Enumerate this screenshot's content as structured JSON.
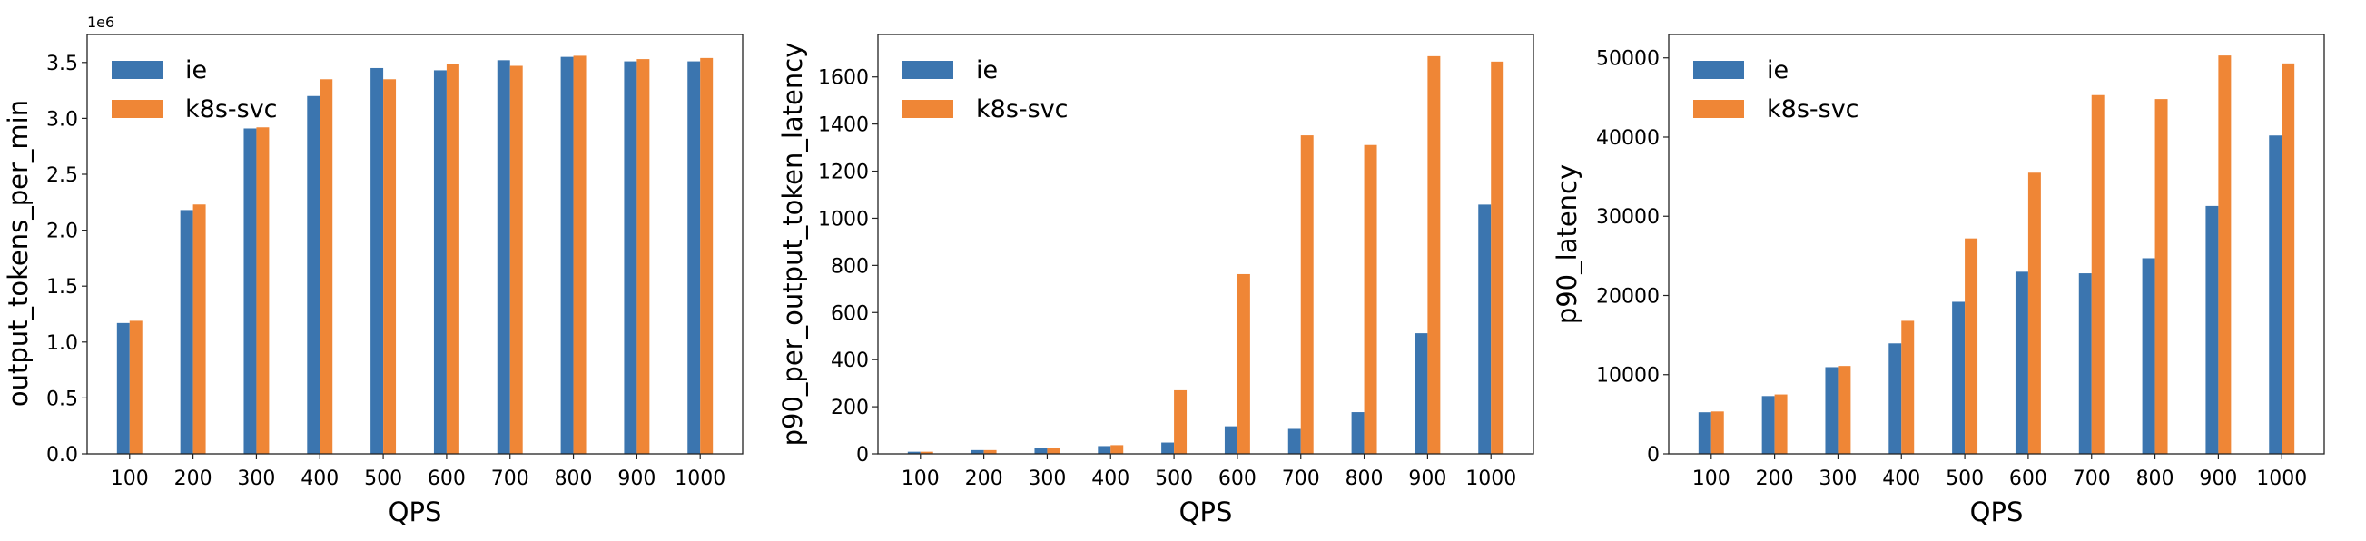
{
  "chart_data": [
    {
      "type": "bar",
      "xlabel": "QPS",
      "ylabel": "output_tokens_per_min",
      "offset_text": "1e6",
      "categories": [
        "100",
        "200",
        "300",
        "400",
        "500",
        "600",
        "700",
        "800",
        "900",
        "1000"
      ],
      "ylim": [
        0,
        3.75
      ],
      "yticks": [
        0.0,
        0.5,
        1.0,
        1.5,
        2.0,
        2.5,
        3.0,
        3.5
      ],
      "ytick_labels": [
        "0.0",
        "0.5",
        "1.0",
        "1.5",
        "2.0",
        "2.5",
        "3.0",
        "3.5"
      ],
      "scale": 1000000,
      "legend": "top-left",
      "grid": false,
      "series": [
        {
          "name": "ie",
          "color": "#3b75af",
          "values": [
            1170000,
            2180000,
            2910000,
            3200000,
            3450000,
            3430000,
            3520000,
            3550000,
            3510000,
            3510000
          ]
        },
        {
          "name": "k8s-svc",
          "color": "#ef8636",
          "values": [
            1190000,
            2230000,
            2920000,
            3350000,
            3350000,
            3490000,
            3470000,
            3560000,
            3530000,
            3540000
          ]
        }
      ]
    },
    {
      "type": "bar",
      "xlabel": "QPS",
      "ylabel": "p90_per_output_token_latency",
      "categories": [
        "100",
        "200",
        "300",
        "400",
        "500",
        "600",
        "700",
        "800",
        "900",
        "1000"
      ],
      "ylim": [
        0,
        1780
      ],
      "yticks": [
        0,
        200,
        400,
        600,
        800,
        1000,
        1200,
        1400,
        1600
      ],
      "ytick_labels": [
        "0",
        "200",
        "400",
        "600",
        "800",
        "1000",
        "1200",
        "1400",
        "1600"
      ],
      "scale": 1,
      "legend": "top-left",
      "grid": false,
      "series": [
        {
          "name": "ie",
          "color": "#3b75af",
          "values": [
            9,
            16,
            24,
            33,
            48,
            117,
            106,
            177,
            512,
            1058
          ]
        },
        {
          "name": "k8s-svc",
          "color": "#ef8636",
          "values": [
            9,
            16,
            24,
            37,
            270,
            763,
            1352,
            1311,
            1688,
            1665
          ]
        }
      ]
    },
    {
      "type": "bar",
      "xlabel": "QPS",
      "ylabel": "p90_latency",
      "categories": [
        "100",
        "200",
        "300",
        "400",
        "500",
        "600",
        "700",
        "800",
        "900",
        "1000"
      ],
      "ylim": [
        0,
        52950
      ],
      "yticks": [
        0,
        10000,
        20000,
        30000,
        40000,
        50000
      ],
      "ytick_labels": [
        "0",
        "10000",
        "20000",
        "30000",
        "40000",
        "50000"
      ],
      "scale": 1,
      "legend": "top-left",
      "grid": false,
      "series": [
        {
          "name": "ie",
          "color": "#3b75af",
          "values": [
            5250,
            7300,
            10950,
            13950,
            19200,
            23000,
            22800,
            24700,
            31300,
            40200
          ]
        },
        {
          "name": "k8s-svc",
          "color": "#ef8636",
          "values": [
            5350,
            7500,
            11100,
            16800,
            27200,
            35500,
            45300,
            44800,
            50300,
            49300
          ]
        }
      ]
    }
  ]
}
